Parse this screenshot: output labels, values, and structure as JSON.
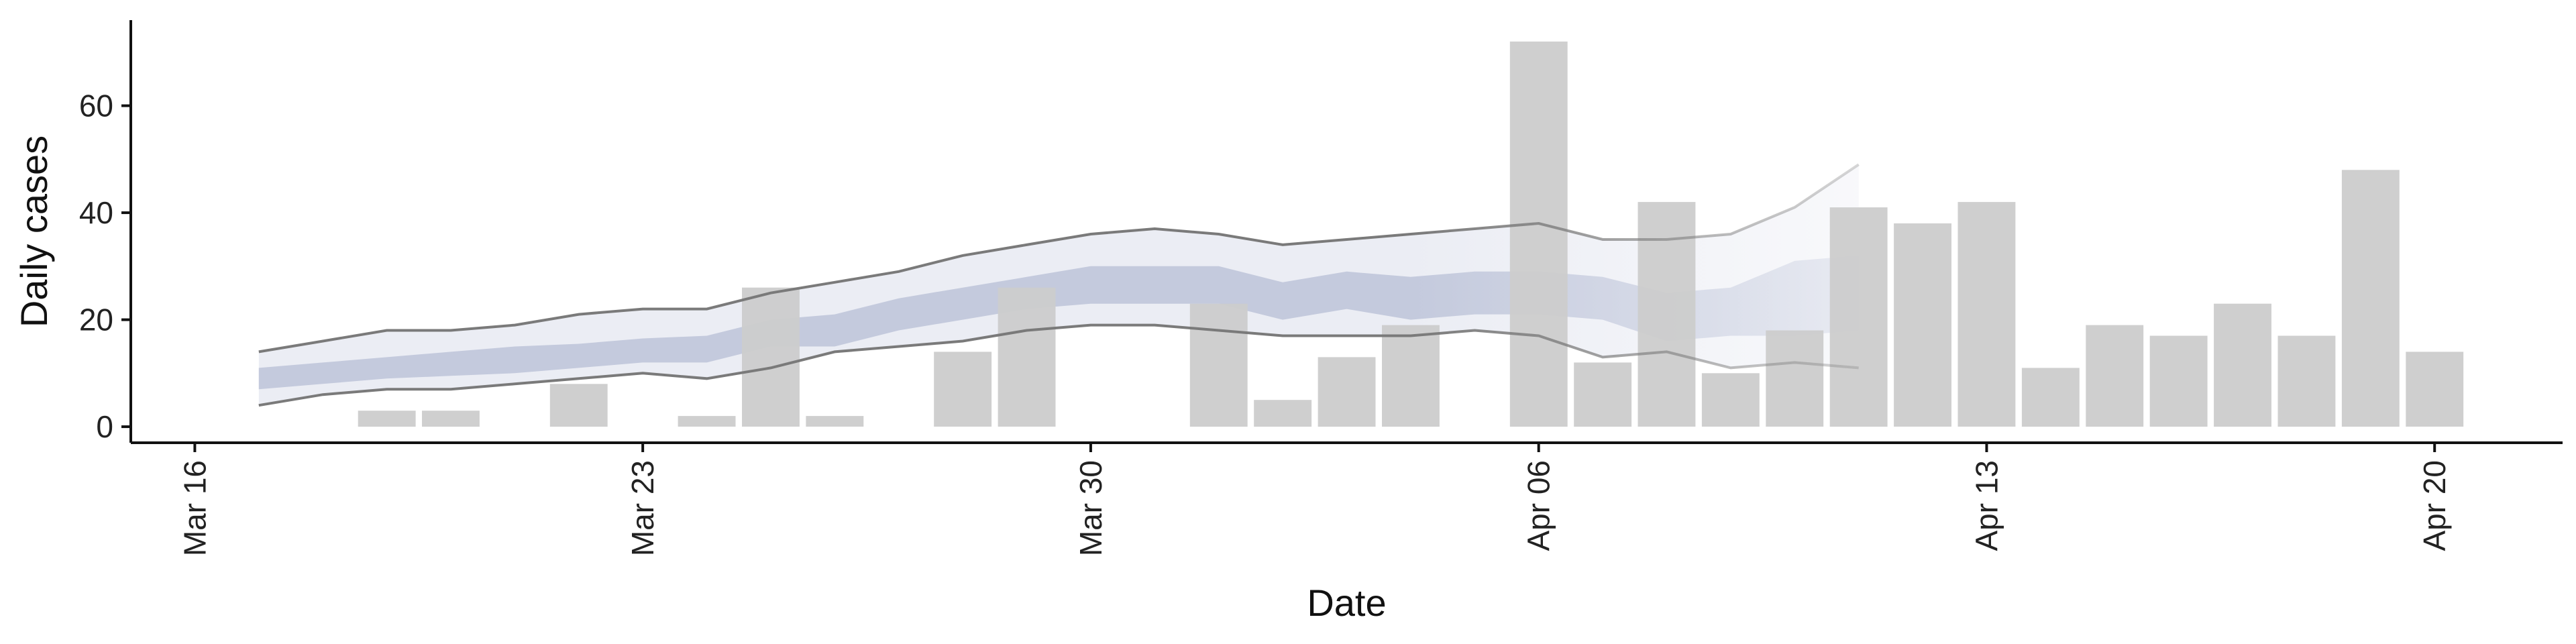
{
  "chart_data": {
    "type": "bar",
    "xlabel": "Date",
    "ylabel": "Daily cases",
    "ylim": [
      -3,
      76
    ],
    "yticks": [
      0,
      20,
      40,
      60
    ],
    "xlim": [
      "2020-03-15",
      "2020-04-22"
    ],
    "xticks": [
      {
        "date": "2020-03-16",
        "label": "Mar 16"
      },
      {
        "date": "2020-03-23",
        "label": "Mar 23"
      },
      {
        "date": "2020-03-30",
        "label": "Mar 30"
      },
      {
        "date": "2020-04-06",
        "label": "Apr 06"
      },
      {
        "date": "2020-04-13",
        "label": "Apr 13"
      },
      {
        "date": "2020-04-20",
        "label": "Apr 20"
      }
    ],
    "grid": false,
    "bars": [
      {
        "date": "2020-03-19",
        "value": 3
      },
      {
        "date": "2020-03-20",
        "value": 3
      },
      {
        "date": "2020-03-22",
        "value": 8
      },
      {
        "date": "2020-03-24",
        "value": 2
      },
      {
        "date": "2020-03-25",
        "value": 26
      },
      {
        "date": "2020-03-26",
        "value": 2
      },
      {
        "date": "2020-03-28",
        "value": 14
      },
      {
        "date": "2020-03-29",
        "value": 26
      },
      {
        "date": "2020-04-01",
        "value": 23
      },
      {
        "date": "2020-04-02",
        "value": 5
      },
      {
        "date": "2020-04-03",
        "value": 13
      },
      {
        "date": "2020-04-04",
        "value": 19
      },
      {
        "date": "2020-04-06",
        "value": 72
      },
      {
        "date": "2020-04-07",
        "value": 12
      },
      {
        "date": "2020-04-08",
        "value": 42
      },
      {
        "date": "2020-04-09",
        "value": 10
      },
      {
        "date": "2020-04-10",
        "value": 18
      },
      {
        "date": "2020-04-11",
        "value": 41
      },
      {
        "date": "2020-04-12",
        "value": 38
      },
      {
        "date": "2020-04-13",
        "value": 42
      },
      {
        "date": "2020-04-14",
        "value": 11
      },
      {
        "date": "2020-04-15",
        "value": 19
      },
      {
        "date": "2020-04-16",
        "value": 17
      },
      {
        "date": "2020-04-17",
        "value": 23
      },
      {
        "date": "2020-04-18",
        "value": 17
      },
      {
        "date": "2020-04-19",
        "value": 48
      },
      {
        "date": "2020-04-20",
        "value": 14
      }
    ],
    "ribbon_dates": [
      "2020-03-17",
      "2020-03-18",
      "2020-03-19",
      "2020-03-20",
      "2020-03-21",
      "2020-03-22",
      "2020-03-23",
      "2020-03-24",
      "2020-03-25",
      "2020-03-26",
      "2020-03-27",
      "2020-03-28",
      "2020-03-29",
      "2020-03-30",
      "2020-03-31",
      "2020-04-01",
      "2020-04-02",
      "2020-04-03",
      "2020-04-04",
      "2020-04-05",
      "2020-04-06",
      "2020-04-07",
      "2020-04-08",
      "2020-04-09",
      "2020-04-10",
      "2020-04-11"
    ],
    "outer_upper": [
      14,
      16,
      18,
      18,
      19,
      21,
      22,
      22,
      25,
      27,
      29,
      32,
      34,
      36,
      37,
      36,
      34,
      35,
      36,
      37,
      38,
      35,
      35,
      36,
      41,
      49
    ],
    "outer_lower": [
      4,
      6,
      7,
      7,
      8,
      9,
      10,
      9,
      11,
      14,
      15,
      16,
      18,
      19,
      19,
      18,
      17,
      17,
      17,
      18,
      17,
      13,
      14,
      11,
      12,
      11
    ],
    "inner_upper": [
      11,
      12,
      13,
      14,
      15,
      15.5,
      16.5,
      17,
      20,
      21,
      24,
      26,
      28,
      30,
      30,
      30,
      27,
      29,
      28,
      29,
      29,
      28,
      25,
      26,
      31,
      32
    ],
    "inner_lower": [
      7,
      8,
      9,
      9.5,
      10,
      11,
      12,
      12,
      15,
      15,
      18,
      20,
      22,
      23,
      23,
      23,
      20,
      22,
      20,
      21,
      21,
      20,
      16,
      17,
      17,
      18
    ],
    "colors": {
      "bar": "#cccccc",
      "outer_band": "#ebedf4",
      "inner_band": "#c4cadd",
      "bound_line": "#7a7a7a",
      "axis": "#111111"
    }
  }
}
